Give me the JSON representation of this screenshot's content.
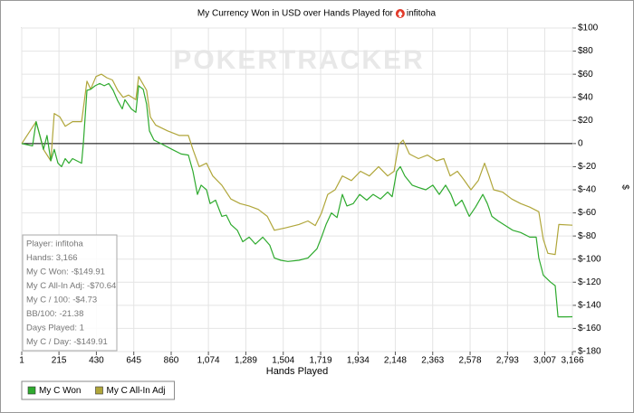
{
  "chart_data": {
    "type": "line",
    "title": "My Currency Won in USD over Hands Played for",
    "player": "infitoha",
    "watermark": "POKERTRACKER",
    "x_label": "Hands Played",
    "y_label": "$",
    "xlim": [
      1,
      3166
    ],
    "xticks": [
      1,
      215,
      430,
      645,
      860,
      {
        "value": 1074,
        "label": "1,074"
      },
      {
        "value": 1289,
        "label": "1,289"
      },
      {
        "value": 1504,
        "label": "1,504"
      },
      {
        "value": 1719,
        "label": "1,719"
      },
      {
        "value": 1934,
        "label": "1,934"
      },
      {
        "value": 2148,
        "label": "2,148"
      },
      {
        "value": 2363,
        "label": "2,363"
      },
      {
        "value": 2578,
        "label": "2,578"
      },
      {
        "value": 2793,
        "label": "2,793"
      },
      {
        "value": 3007,
        "label": "3,007"
      },
      {
        "value": 3166,
        "label": "3,166"
      }
    ],
    "ylim": [
      -180,
      100
    ],
    "yticks": [
      {
        "value": 100,
        "label": "$100"
      },
      {
        "value": 80,
        "label": "$80"
      },
      {
        "value": 60,
        "label": "$60"
      },
      {
        "value": 40,
        "label": "$40"
      },
      {
        "value": 20,
        "label": "$20"
      },
      0,
      {
        "value": -20,
        "label": "$-20"
      },
      {
        "value": -40,
        "label": "$-40"
      },
      {
        "value": -60,
        "label": "$-60"
      },
      {
        "value": -80,
        "label": "$-80"
      },
      {
        "value": -100,
        "label": "$-100"
      },
      {
        "value": -120,
        "label": "$-120"
      },
      {
        "value": -140,
        "label": "$-140"
      },
      {
        "value": -160,
        "label": "$-160"
      },
      {
        "value": -180,
        "label": "$-180"
      }
    ],
    "grid": true,
    "zero_line": true,
    "legend": "bottom-left",
    "series": [
      {
        "name": "My C Won",
        "color": "#2eaa2e",
        "x": [
          1,
          32,
          63,
          84,
          105,
          126,
          146,
          168,
          188,
          209,
          230,
          251,
          272,
          293,
          345,
          355,
          376,
          397,
          423,
          449,
          475,
          501,
          527,
          553,
          579,
          594,
          631,
          657,
          673,
          699,
          719,
          735,
          761,
          813,
          865,
          917,
          959,
          985,
          1011,
          1032,
          1063,
          1084,
          1115,
          1151,
          1177,
          1203,
          1240,
          1271,
          1308,
          1344,
          1386,
          1427,
          1453,
          1490,
          1531,
          1594,
          1646,
          1698,
          1724,
          1750,
          1781,
          1813,
          1844,
          1870,
          1906,
          1943,
          1984,
          2021,
          2063,
          2104,
          2130,
          2156,
          2177,
          2203,
          2245,
          2281,
          2323,
          2364,
          2401,
          2437,
          2468,
          2494,
          2531,
          2573,
          2609,
          2651,
          2677,
          2703,
          2739,
          2781,
          2823,
          2869,
          2921,
          2958,
          2973,
          2999,
          3041,
          3067,
          3083,
          3130,
          3166
        ],
        "values": [
          0,
          -1,
          -2,
          19,
          7,
          -5,
          7,
          -15,
          -5,
          -17,
          -20,
          -13,
          -17,
          -13,
          -17,
          0,
          46,
          47,
          50,
          52,
          50,
          52,
          46,
          37,
          30,
          38,
          30,
          27,
          50,
          47,
          34,
          11,
          3,
          -1,
          -5,
          -9,
          -10,
          -24,
          -44,
          -36,
          -40,
          -52,
          -49,
          -63,
          -62,
          -70,
          -75,
          -85,
          -81,
          -87,
          -81,
          -88,
          -99,
          -101,
          -102,
          -101,
          -99,
          -91,
          -81,
          -70,
          -60,
          -64,
          -44,
          -54,
          -52,
          -44,
          -49,
          -44,
          -48,
          -42,
          -46,
          -24,
          -20,
          -28,
          -36,
          -38,
          -40,
          -36,
          -44,
          -36,
          -44,
          -54,
          -49,
          -63,
          -55,
          -44,
          -52,
          -63,
          -67,
          -71,
          -75,
          -77,
          -81,
          -81,
          -99,
          -114,
          -120,
          -123,
          -150,
          -150,
          -149.91
        ]
      },
      {
        "name": "My C All-In Adj",
        "color": "#b0a63a",
        "x": [
          1,
          84,
          126,
          168,
          188,
          220,
          251,
          293,
          345,
          376,
          397,
          428,
          459,
          490,
          522,
          553,
          584,
          615,
          657,
          673,
          719,
          740,
          771,
          839,
          907,
          959,
          985,
          1021,
          1063,
          1099,
          1151,
          1203,
          1256,
          1308,
          1360,
          1412,
          1453,
          1516,
          1594,
          1646,
          1688,
          1724,
          1760,
          1802,
          1844,
          1896,
          1948,
          1999,
          2052,
          2104,
          2141,
          2167,
          2193,
          2229,
          2281,
          2333,
          2385,
          2427,
          2463,
          2505,
          2541,
          2583,
          2625,
          2661,
          2687,
          2713,
          2765,
          2817,
          2869,
          2921,
          2973,
          2999,
          3025,
          3067,
          3088,
          3166
        ],
        "values": [
          0,
          19,
          -5,
          -15,
          26,
          23,
          15,
          19,
          19,
          54,
          47,
          58,
          60,
          57,
          55,
          46,
          40,
          42,
          38,
          58,
          46,
          23,
          16,
          11,
          7,
          7,
          -5,
          -20,
          -17,
          -28,
          -36,
          -48,
          -52,
          -54,
          -57,
          -63,
          -75,
          -73,
          -70,
          -67,
          -71,
          -60,
          -44,
          -40,
          -28,
          -32,
          -24,
          -28,
          -20,
          -28,
          -24,
          -1,
          3,
          -9,
          -13,
          -10,
          -15,
          -13,
          -28,
          -24,
          -31,
          -40,
          -32,
          -17,
          -28,
          -40,
          -42,
          -48,
          -52,
          -55,
          -59,
          -83,
          -95,
          -96,
          -70,
          -70.64
        ]
      }
    ],
    "info_box": [
      "Player: infitoha",
      "Hands: 3,166",
      "My C Won: -$149.91",
      "My C All-In Adj: -$70.64",
      "My C / 100: -$4.73",
      "BB/100: -21.38",
      "Days Played: 1",
      "My C / Day: -$149.91"
    ]
  }
}
